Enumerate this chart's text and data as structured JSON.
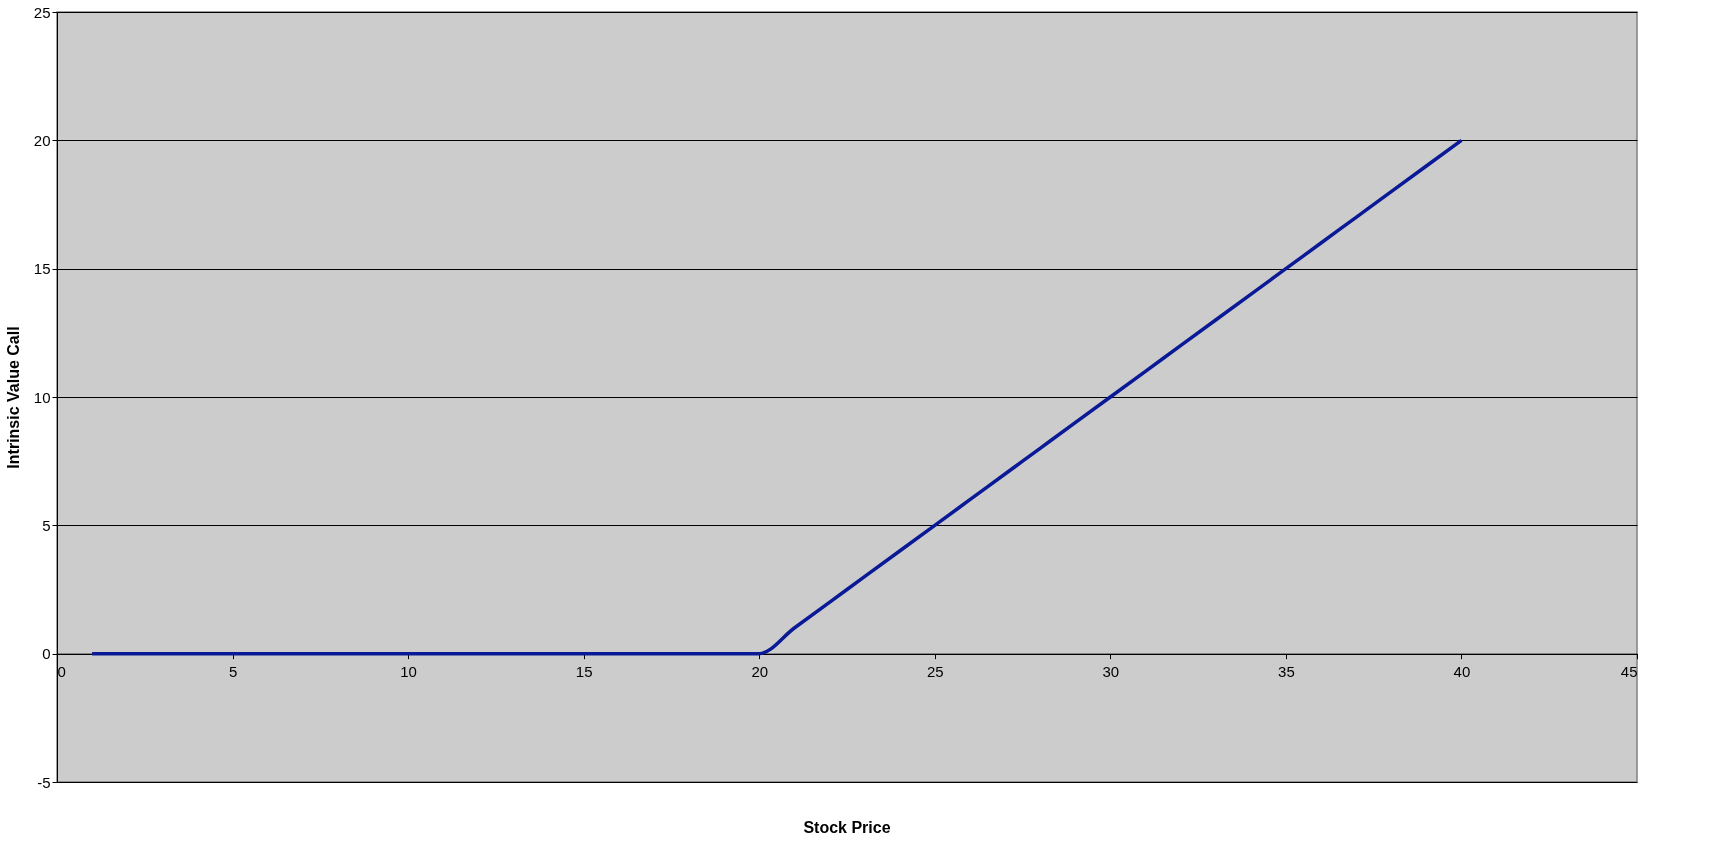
{
  "chart_data": {
    "type": "line",
    "xlabel": "Stock Price",
    "ylabel": "Intrinsic Value Call",
    "x": [
      1,
      2,
      3,
      4,
      5,
      6,
      7,
      8,
      9,
      10,
      11,
      12,
      13,
      14,
      15,
      16,
      17,
      18,
      19,
      20,
      21,
      22,
      23,
      24,
      25,
      26,
      27,
      28,
      29,
      30,
      31,
      32,
      33,
      34,
      35,
      36,
      37,
      38,
      39,
      40
    ],
    "series": [
      {
        "color": "#0a1a96",
        "values": [
          0,
          0,
          0,
          0,
          0,
          0,
          0,
          0,
          0,
          0,
          0,
          0,
          0,
          0,
          0,
          0,
          0,
          0,
          0,
          0,
          1,
          2,
          3,
          4,
          5,
          6,
          7,
          8,
          9,
          10,
          11,
          12,
          13,
          14,
          15,
          16,
          17,
          18,
          19,
          20
        ]
      }
    ],
    "xlim": [
      0,
      45
    ],
    "xticks": [
      0,
      5,
      10,
      15,
      20,
      25,
      30,
      35,
      40,
      45
    ],
    "ylim": [
      -5,
      25
    ],
    "yticks": [
      -5,
      0,
      5,
      10,
      15,
      20,
      25
    ],
    "grid": "y",
    "marker": "none",
    "line_style": "solid"
  }
}
